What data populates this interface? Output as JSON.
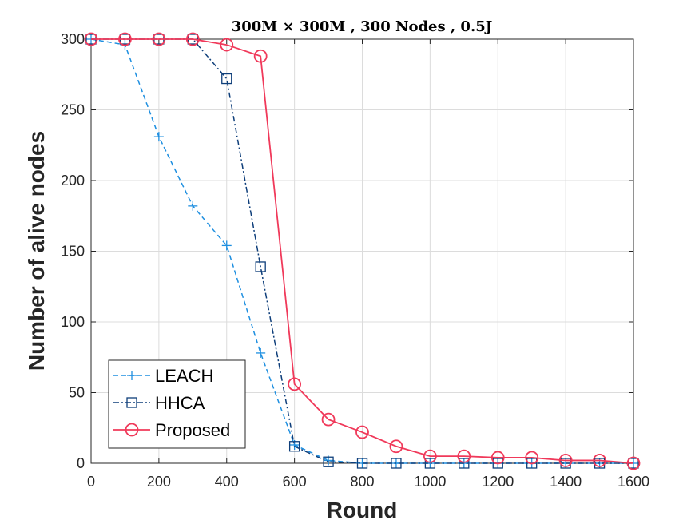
{
  "chart_data": {
    "type": "line",
    "title": "300M × 300M , 300 Nodes , 0.5J",
    "xlabel": "Round",
    "ylabel": "Number of alive nodes",
    "xlim": [
      0,
      1600
    ],
    "ylim": [
      0,
      300
    ],
    "xticks": [
      0,
      200,
      400,
      600,
      800,
      1000,
      1200,
      1400,
      1600
    ],
    "yticks": [
      0,
      50,
      100,
      150,
      200,
      250,
      300
    ],
    "grid": true,
    "legend_position": "bottom-left",
    "x": [
      0,
      100,
      200,
      300,
      400,
      500,
      600,
      700,
      800,
      900,
      1000,
      1100,
      1200,
      1300,
      1400,
      1500,
      1600
    ],
    "series": [
      {
        "name": "LEACH",
        "color": "#1e8fe0",
        "line_style": "dashed",
        "marker": "plus",
        "values": [
          300,
          296,
          231,
          182,
          154,
          78,
          13,
          2,
          0,
          0,
          0,
          0,
          0,
          0,
          0,
          0,
          0
        ]
      },
      {
        "name": "HHCA",
        "color": "#0e3e7a",
        "line_style": "dashdot",
        "marker": "square",
        "values": [
          300,
          300,
          300,
          300,
          272,
          139,
          12,
          1,
          0,
          0,
          0,
          0,
          0,
          0,
          0,
          0,
          0
        ]
      },
      {
        "name": "Proposed",
        "color": "#f0395a",
        "line_style": "solid",
        "marker": "circle",
        "values": [
          300,
          300,
          300,
          300,
          296,
          288,
          56,
          31,
          22,
          12,
          5,
          5,
          4,
          4,
          2,
          2,
          0
        ]
      }
    ]
  }
}
